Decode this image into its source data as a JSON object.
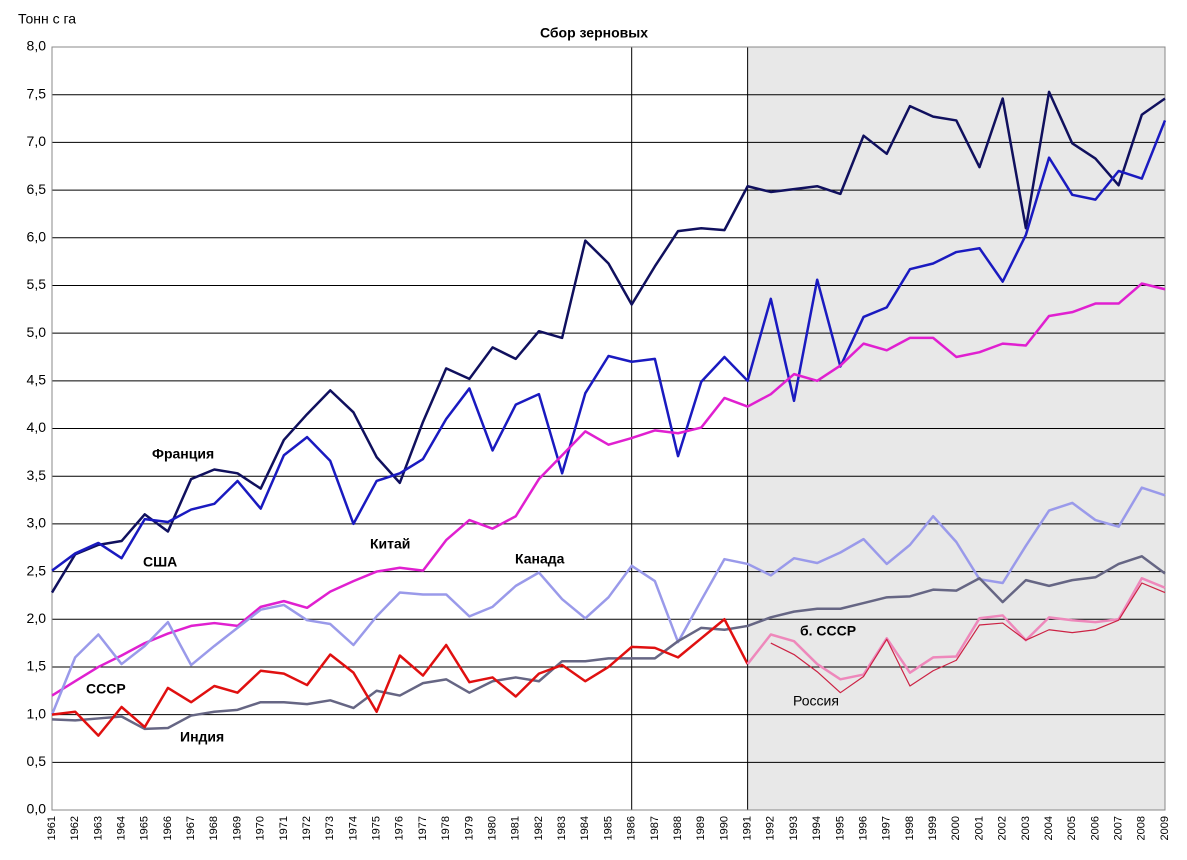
{
  "chart_data": {
    "type": "line",
    "title": "Сбор зерновых",
    "y_label": "Тонн с га",
    "categories": [
      "1961",
      "1962",
      "1963",
      "1964",
      "1965",
      "1966",
      "1967",
      "1968",
      "1969",
      "1970",
      "1971",
      "1972",
      "1973",
      "1974",
      "1975",
      "1976",
      "1977",
      "1978",
      "1979",
      "1980",
      "1981",
      "1982",
      "1983",
      "1984",
      "1985",
      "1986",
      "1987",
      "1988",
      "1989",
      "1990",
      "1991",
      "1992",
      "1993",
      "1994",
      "1995",
      "1996",
      "1997",
      "1998",
      "1999",
      "2000",
      "2001",
      "2002",
      "2003",
      "2004",
      "2005",
      "2006",
      "2007",
      "2008",
      "2009"
    ],
    "ylim": [
      0,
      8
    ],
    "yticks": [
      {
        "value": 0,
        "label": "0,0"
      },
      {
        "value": 0.5,
        "label": "0,5"
      },
      {
        "value": 1,
        "label": "1,0"
      },
      {
        "value": 1.5,
        "label": "1,5"
      },
      {
        "value": 2,
        "label": "2,0"
      },
      {
        "value": 2.5,
        "label": "2,5"
      },
      {
        "value": 3,
        "label": "3,0"
      },
      {
        "value": 3.5,
        "label": "3,5"
      },
      {
        "value": 4,
        "label": "4,0"
      },
      {
        "value": 4.5,
        "label": "4,5"
      },
      {
        "value": 5,
        "label": "5,0"
      },
      {
        "value": 5.5,
        "label": "5,5"
      },
      {
        "value": 6,
        "label": "6,0"
      },
      {
        "value": 6.5,
        "label": "6,5"
      },
      {
        "value": 7,
        "label": "7,0"
      },
      {
        "value": 7.5,
        "label": "7,5"
      },
      {
        "value": 8,
        "label": "8,0"
      }
    ],
    "grid": true,
    "vertical_lines": [
      "1986",
      "1991"
    ],
    "shaded_region": [
      "1991",
      "2009"
    ],
    "series": [
      {
        "name": "Франция",
        "color": "#10105e",
        "values": [
          2.28,
          2.68,
          2.78,
          2.82,
          3.1,
          2.92,
          3.47,
          3.57,
          3.53,
          3.37,
          3.88,
          4.15,
          4.4,
          4.17,
          3.7,
          3.43,
          4.07,
          4.63,
          4.52,
          4.85,
          4.73,
          5.02,
          4.95,
          5.97,
          5.73,
          5.3,
          5.7,
          6.07,
          6.1,
          6.08,
          6.54,
          6.48,
          6.51,
          6.54,
          6.46,
          7.07,
          6.88,
          7.38,
          7.27,
          7.23,
          6.74,
          7.46,
          6.1,
          7.53,
          6.99,
          6.83,
          6.55,
          7.29,
          7.46
        ]
      },
      {
        "name": "США",
        "color": "#1a1ac0",
        "values": [
          2.51,
          2.69,
          2.8,
          2.64,
          3.05,
          3.02,
          3.15,
          3.21,
          3.45,
          3.16,
          3.72,
          3.91,
          3.66,
          3.0,
          3.45,
          3.53,
          3.68,
          4.1,
          4.42,
          3.77,
          4.25,
          4.36,
          3.53,
          4.37,
          4.76,
          4.7,
          4.73,
          3.71,
          4.49,
          4.75,
          4.5,
          5.36,
          4.29,
          5.56,
          4.65,
          5.17,
          5.27,
          5.67,
          5.73,
          5.85,
          5.89,
          5.54,
          6.03,
          6.84,
          6.45,
          6.4,
          6.7,
          6.62,
          7.23
        ]
      },
      {
        "name": "Китай",
        "color": "#e020d0",
        "values": [
          1.2,
          1.35,
          1.5,
          1.62,
          1.75,
          1.85,
          1.93,
          1.96,
          1.93,
          2.13,
          2.19,
          2.12,
          2.29,
          2.4,
          2.5,
          2.54,
          2.51,
          2.83,
          3.04,
          2.95,
          3.08,
          3.47,
          3.72,
          3.97,
          3.83,
          3.9,
          3.98,
          3.95,
          4.01,
          4.32,
          4.23,
          4.36,
          4.57,
          4.5,
          4.66,
          4.89,
          4.82,
          4.95,
          4.95,
          4.75,
          4.8,
          4.89,
          4.87,
          5.18,
          5.22,
          5.31,
          5.31,
          5.52,
          5.46
        ]
      },
      {
        "name": "Канада",
        "color": "#9a9aea",
        "values": [
          1.0,
          1.6,
          1.84,
          1.53,
          1.72,
          1.97,
          1.52,
          1.72,
          1.91,
          2.1,
          2.15,
          1.99,
          1.95,
          1.73,
          2.03,
          2.28,
          2.26,
          2.26,
          2.03,
          2.13,
          2.35,
          2.49,
          2.21,
          2.01,
          2.23,
          2.56,
          2.4,
          1.76,
          2.2,
          2.63,
          2.58,
          2.46,
          2.64,
          2.59,
          2.7,
          2.84,
          2.58,
          2.78,
          3.08,
          2.81,
          2.42,
          2.38,
          2.77,
          3.14,
          3.22,
          3.04,
          2.97,
          3.38,
          3.3
        ]
      },
      {
        "name": "Индия",
        "color": "#666684",
        "values": [
          0.95,
          0.94,
          0.96,
          0.98,
          0.85,
          0.86,
          0.99,
          1.03,
          1.05,
          1.13,
          1.13,
          1.11,
          1.15,
          1.07,
          1.25,
          1.2,
          1.33,
          1.37,
          1.23,
          1.35,
          1.39,
          1.35,
          1.56,
          1.56,
          1.59,
          1.59,
          1.59,
          1.77,
          1.91,
          1.89,
          1.93,
          2.02,
          2.08,
          2.11,
          2.11,
          2.17,
          2.23,
          2.24,
          2.31,
          2.3,
          2.43,
          2.18,
          2.41,
          2.35,
          2.41,
          2.44,
          2.58,
          2.66,
          2.48
        ]
      },
      {
        "name": "СССР",
        "color": "#e01010",
        "values": [
          1.0,
          1.03,
          0.78,
          1.08,
          0.87,
          1.28,
          1.13,
          1.3,
          1.23,
          1.46,
          1.43,
          1.31,
          1.63,
          1.44,
          1.03,
          1.62,
          1.41,
          1.73,
          1.34,
          1.39,
          1.19,
          1.43,
          1.52,
          1.35,
          1.5,
          1.71,
          1.7,
          1.6,
          1.8,
          2.0,
          1.53,
          null,
          null,
          null,
          null,
          null,
          null,
          null,
          null,
          null,
          null,
          null,
          null,
          null,
          null,
          null,
          null,
          null,
          null
        ]
      },
      {
        "name": "б. СССР",
        "color": "#ee88bb",
        "values": [
          null,
          null,
          null,
          null,
          null,
          null,
          null,
          null,
          null,
          null,
          null,
          null,
          null,
          null,
          null,
          null,
          null,
          null,
          null,
          null,
          null,
          null,
          null,
          null,
          null,
          null,
          null,
          null,
          null,
          null,
          1.53,
          1.84,
          1.77,
          1.53,
          1.37,
          1.42,
          1.8,
          1.44,
          1.6,
          1.61,
          2.01,
          2.04,
          1.78,
          2.02,
          1.99,
          1.97,
          2.0,
          2.43,
          2.33
        ]
      },
      {
        "name": "Россия",
        "color": "#cc2244",
        "values": [
          null,
          null,
          null,
          null,
          null,
          null,
          null,
          null,
          null,
          null,
          null,
          null,
          null,
          null,
          null,
          null,
          null,
          null,
          null,
          null,
          null,
          null,
          null,
          null,
          null,
          null,
          null,
          null,
          null,
          null,
          null,
          1.75,
          1.63,
          1.45,
          1.23,
          1.4,
          1.79,
          1.3,
          1.46,
          1.57,
          1.94,
          1.96,
          1.78,
          1.89,
          1.86,
          1.89,
          1.99,
          2.38,
          2.28
        ]
      }
    ]
  }
}
